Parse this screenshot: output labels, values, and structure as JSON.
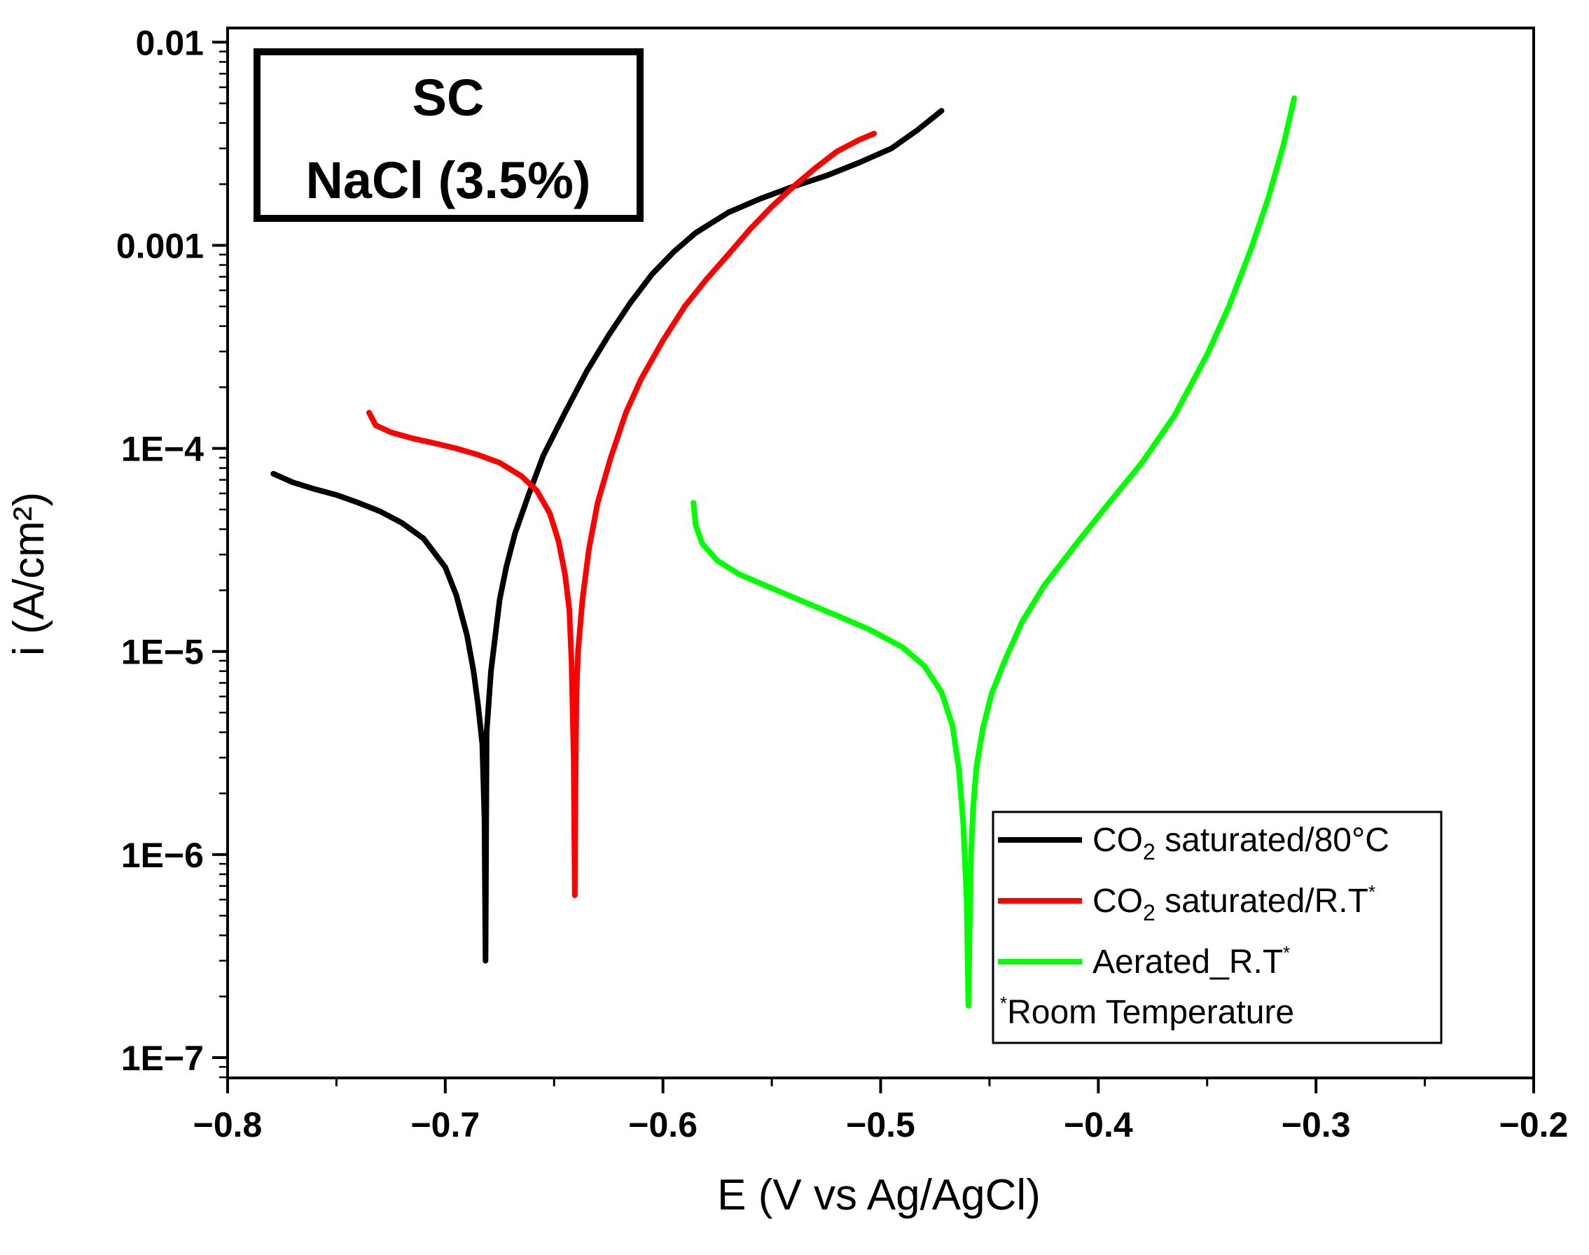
{
  "chart_data": {
    "type": "line",
    "x_scale": "linear",
    "y_scale": "log",
    "xlim": [
      -0.8,
      -0.2
    ],
    "ylim_log10": [
      -7.1,
      -1.93
    ],
    "xlabel": "E (V vs Ag/AgCl)",
    "ylabel": "i (A/cm²)",
    "x_ticks": [
      {
        "value": -0.8,
        "label": "−0.8"
      },
      {
        "value": -0.7,
        "label": "−0.7"
      },
      {
        "value": -0.6,
        "label": "−0.6"
      },
      {
        "value": -0.5,
        "label": "−0.5"
      },
      {
        "value": -0.4,
        "label": "−0.4"
      },
      {
        "value": -0.3,
        "label": "−0.3"
      },
      {
        "value": -0.2,
        "label": "−0.2"
      }
    ],
    "y_ticks": [
      {
        "exp": -7,
        "label": "1E−7"
      },
      {
        "exp": -6,
        "label": "1E−6"
      },
      {
        "exp": -5,
        "label": "1E−5"
      },
      {
        "exp": -4,
        "label": "1E−4"
      },
      {
        "exp": -3,
        "label": "0.001"
      },
      {
        "exp": -2,
        "label": "0.01"
      }
    ],
    "annotation_box": {
      "line1": "SC",
      "line2": "NaCl (3.5%)"
    },
    "series": [
      {
        "name": "CO2 saturated/80°C",
        "legend": {
          "prefix": "CO",
          "sub": "2",
          "suffix": " saturated/80°C",
          "sup": ""
        },
        "color": "#000000",
        "points": [
          [
            -0.779,
            7.5e-05
          ],
          [
            -0.77,
            6.8e-05
          ],
          [
            -0.76,
            6.3e-05
          ],
          [
            -0.75,
            5.9e-05
          ],
          [
            -0.74,
            5.4e-05
          ],
          [
            -0.73,
            4.9e-05
          ],
          [
            -0.72,
            4.3e-05
          ],
          [
            -0.71,
            3.6e-05
          ],
          [
            -0.7,
            2.6e-05
          ],
          [
            -0.695,
            1.9e-05
          ],
          [
            -0.69,
            1.2e-05
          ],
          [
            -0.687,
            8e-06
          ],
          [
            -0.685,
            5.5e-06
          ],
          [
            -0.683,
            3.5e-06
          ],
          [
            -0.682,
            1.5e-06
          ],
          [
            -0.6815,
            3e-07
          ],
          [
            -0.6812,
            1.5e-06
          ],
          [
            -0.681,
            4e-06
          ],
          [
            -0.679,
            8e-06
          ],
          [
            -0.677,
            1.2e-05
          ],
          [
            -0.675,
            1.8e-05
          ],
          [
            -0.672,
            2.6e-05
          ],
          [
            -0.668,
            3.8e-05
          ],
          [
            -0.662,
            5.8e-05
          ],
          [
            -0.655,
            9.2e-05
          ],
          [
            -0.645,
            0.00015
          ],
          [
            -0.635,
            0.00024
          ],
          [
            -0.625,
            0.00036
          ],
          [
            -0.615,
            0.00052
          ],
          [
            -0.605,
            0.00072
          ],
          [
            -0.595,
            0.00093
          ],
          [
            -0.585,
            0.00115
          ],
          [
            -0.57,
            0.00145
          ],
          [
            -0.555,
            0.0017
          ],
          [
            -0.54,
            0.00195
          ],
          [
            -0.525,
            0.0022
          ],
          [
            -0.51,
            0.00255
          ],
          [
            -0.495,
            0.003
          ],
          [
            -0.483,
            0.0037
          ],
          [
            -0.472,
            0.0046
          ]
        ]
      },
      {
        "name": "CO2 saturated/R.T*",
        "legend": {
          "prefix": "CO",
          "sub": "2",
          "suffix": " saturated/R.T",
          "sup": "*"
        },
        "color": "#ff0000",
        "points": [
          [
            -0.735,
            0.00015
          ],
          [
            -0.732,
            0.00013
          ],
          [
            -0.725,
            0.00012
          ],
          [
            -0.715,
            0.000112
          ],
          [
            -0.705,
            0.000106
          ],
          [
            -0.695,
            0.0001
          ],
          [
            -0.685,
            9.3e-05
          ],
          [
            -0.675,
            8.5e-05
          ],
          [
            -0.665,
            7.3e-05
          ],
          [
            -0.658,
            6.2e-05
          ],
          [
            -0.652,
            4.8e-05
          ],
          [
            -0.648,
            3.5e-05
          ],
          [
            -0.645,
            2.4e-05
          ],
          [
            -0.643,
            1.6e-05
          ],
          [
            -0.642,
            9e-06
          ],
          [
            -0.641,
            3e-06
          ],
          [
            -0.6405,
            6.3e-07
          ],
          [
            -0.6402,
            2e-06
          ],
          [
            -0.6398,
            6e-06
          ],
          [
            -0.639,
            1e-05
          ],
          [
            -0.637,
            1.8e-05
          ],
          [
            -0.634,
            3.2e-05
          ],
          [
            -0.63,
            5.4e-05
          ],
          [
            -0.624,
            9e-05
          ],
          [
            -0.617,
            0.00015
          ],
          [
            -0.61,
            0.00022
          ],
          [
            -0.6,
            0.00034
          ],
          [
            -0.59,
            0.0005
          ],
          [
            -0.58,
            0.00068
          ],
          [
            -0.57,
            0.0009
          ],
          [
            -0.56,
            0.0012
          ],
          [
            -0.55,
            0.00155
          ],
          [
            -0.54,
            0.00195
          ],
          [
            -0.53,
            0.0024
          ],
          [
            -0.52,
            0.0029
          ],
          [
            -0.51,
            0.0033
          ],
          [
            -0.503,
            0.00355
          ]
        ]
      },
      {
        "name": "Aerated_R.T*",
        "legend": {
          "prefix": "Aerated_R.T",
          "sub": "",
          "suffix": "",
          "sup": "*"
        },
        "color": "#00ff00",
        "points": [
          [
            -0.586,
            5.4e-05
          ],
          [
            -0.585,
            4.2e-05
          ],
          [
            -0.582,
            3.4e-05
          ],
          [
            -0.575,
            2.8e-05
          ],
          [
            -0.565,
            2.4e-05
          ],
          [
            -0.55,
            2.05e-05
          ],
          [
            -0.535,
            1.75e-05
          ],
          [
            -0.52,
            1.5e-05
          ],
          [
            -0.505,
            1.28e-05
          ],
          [
            -0.49,
            1.05e-05
          ],
          [
            -0.48,
            8.5e-06
          ],
          [
            -0.472,
            6.3e-06
          ],
          [
            -0.467,
            4.3e-06
          ],
          [
            -0.464,
            2.6e-06
          ],
          [
            -0.462,
            1.4e-06
          ],
          [
            -0.4605,
            6e-07
          ],
          [
            -0.4597,
            1.8e-07
          ],
          [
            -0.459,
            5e-07
          ],
          [
            -0.4585,
            1e-06
          ],
          [
            -0.4575,
            1.7e-06
          ],
          [
            -0.456,
            2.7e-06
          ],
          [
            -0.453,
            4.2e-06
          ],
          [
            -0.449,
            6.2e-06
          ],
          [
            -0.443,
            9e-06
          ],
          [
            -0.435,
            1.4e-05
          ],
          [
            -0.425,
            2.1e-05
          ],
          [
            -0.41,
            3.4e-05
          ],
          [
            -0.395,
            5.4e-05
          ],
          [
            -0.38,
            8.5e-05
          ],
          [
            -0.365,
            0.000145
          ],
          [
            -0.35,
            0.00029
          ],
          [
            -0.34,
            0.0005
          ],
          [
            -0.33,
            0.00095
          ],
          [
            -0.322,
            0.0017
          ],
          [
            -0.315,
            0.0031
          ],
          [
            -0.31,
            0.0053
          ]
        ]
      }
    ],
    "legend_footnote": {
      "sup": "*",
      "text": "Room Temperature"
    },
    "legend_position": "bottom-right"
  }
}
